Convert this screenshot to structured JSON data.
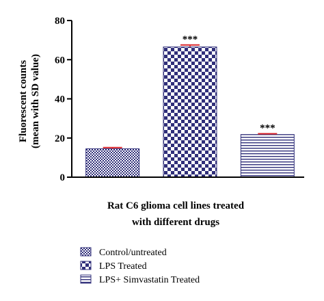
{
  "chart_data": {
    "type": "bar",
    "title": "",
    "xlabel_lines": [
      "Rat C6 glioma cell lines treated",
      "with different drugs"
    ],
    "ylabel_lines": [
      "Fluorescent counts",
      "(mean with SD value)"
    ],
    "ylim": [
      0,
      80
    ],
    "yticks": [
      0,
      20,
      40,
      60,
      80
    ],
    "grid": false,
    "legend_position": "bottom-left",
    "categories": [
      "Control/untreated",
      "LPS Treated",
      "LPS+ Simvastatin Treated"
    ],
    "values": [
      14.5,
      66.5,
      21.8
    ],
    "errors": [
      0.6,
      1.0,
      0.4
    ],
    "annotations": [
      "",
      "***",
      "***"
    ],
    "patterns": [
      "fine-check",
      "checkerboard",
      "horizontal-lines"
    ],
    "colors": {
      "bar_fill": "#302f7a",
      "error_bar": "#d9252b",
      "axis": "#000000"
    }
  }
}
